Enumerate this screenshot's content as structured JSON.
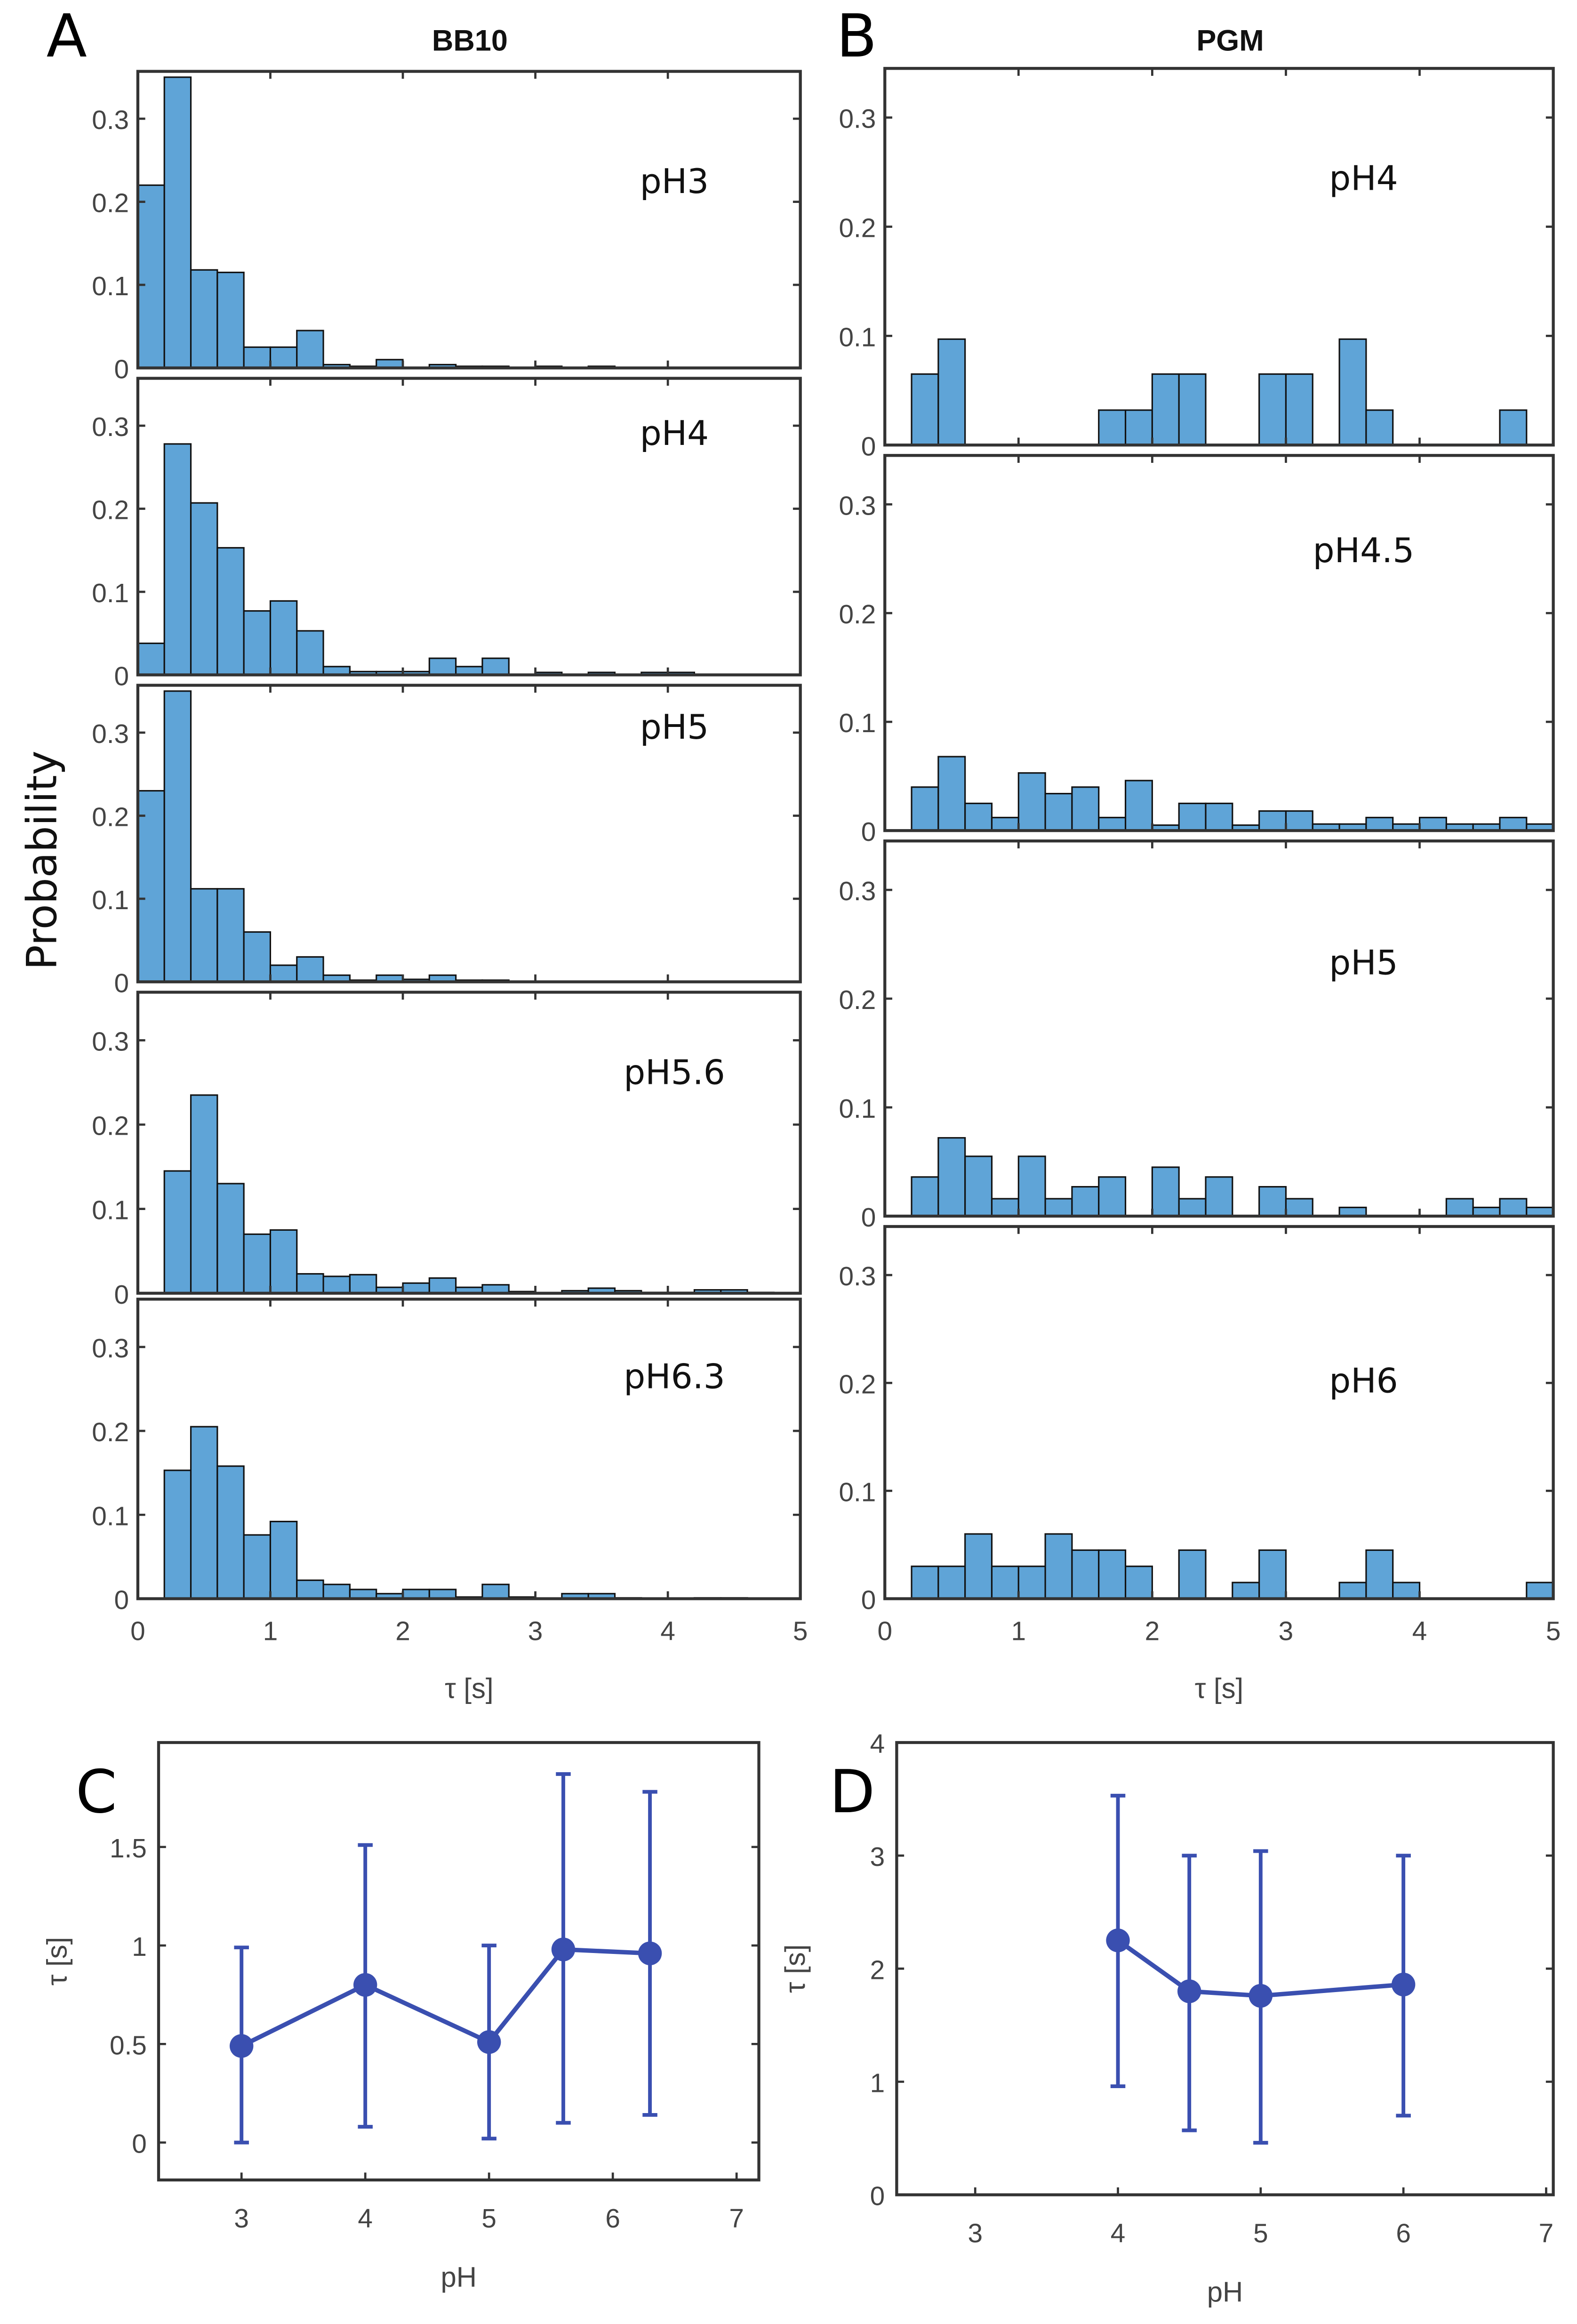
{
  "chart_data": [
    {
      "panel": "A",
      "type": "bar",
      "title": "BB10",
      "ylabel": "Probability",
      "xlabel": "τ [s]",
      "bin_edges_start": 0,
      "bin_width": 0.2,
      "xlim": [
        0,
        5
      ],
      "ylim": [
        0,
        0.357
      ],
      "xticks": [
        "0",
        "1",
        "2",
        "3",
        "4",
        "5"
      ],
      "yticks": [
        "0",
        "0.1",
        "0.2",
        "0.3"
      ],
      "series": [
        {
          "name": "pH3",
          "values": [
            0.22,
            0.35,
            0.118,
            0.115,
            0.025,
            0.025,
            0.045,
            0.004,
            0.002,
            0.01,
            0,
            0.004,
            0.002,
            0.002,
            0,
            0.002,
            0,
            0.002,
            0,
            0,
            0,
            0,
            0,
            0,
            0
          ]
        },
        {
          "name": "pH4",
          "values": [
            0.038,
            0.278,
            0.207,
            0.153,
            0.077,
            0.089,
            0.053,
            0.01,
            0.004,
            0.004,
            0.004,
            0.02,
            0.01,
            0.02,
            0,
            0.003,
            0,
            0.003,
            0,
            0.003,
            0.003,
            0,
            0,
            0,
            0
          ]
        },
        {
          "name": "pH5",
          "values": [
            0.23,
            0.35,
            0.112,
            0.112,
            0.06,
            0.02,
            0.03,
            0.008,
            0.002,
            0.008,
            0.003,
            0.008,
            0.002,
            0.002,
            0,
            0,
            0,
            0,
            0,
            0,
            0,
            0,
            0,
            0,
            0
          ]
        },
        {
          "name": "pH5.6",
          "values": [
            0,
            0.145,
            0.235,
            0.13,
            0.07,
            0.075,
            0.023,
            0.02,
            0.022,
            0.007,
            0.012,
            0.018,
            0.007,
            0.01,
            0.002,
            0,
            0.003,
            0.006,
            0.003,
            0.001,
            0.001,
            0.004,
            0.004,
            0.001,
            0
          ]
        },
        {
          "name": "pH6.3",
          "values": [
            0,
            0.153,
            0.205,
            0.158,
            0.076,
            0.092,
            0.022,
            0.017,
            0.011,
            0.006,
            0.011,
            0.011,
            0.002,
            0.017,
            0.002,
            0,
            0.006,
            0.006,
            0.001,
            0,
            0,
            0.001,
            0.001,
            0,
            0
          ]
        }
      ]
    },
    {
      "panel": "B",
      "type": "bar",
      "title": "PGM",
      "xlabel": "τ [s]",
      "bin_edges_start": 0,
      "bin_width": 0.2,
      "xlim": [
        0,
        5
      ],
      "ylim": [
        0,
        0.345
      ],
      "xticks": [
        "0",
        "1",
        "2",
        "3",
        "4",
        "5"
      ],
      "yticks": [
        "0",
        "0.1",
        "0.2",
        "0.3"
      ],
      "series": [
        {
          "name": "pH4",
          "values": [
            0,
            0.065,
            0.097,
            0,
            0,
            0,
            0,
            0,
            0.032,
            0.032,
            0.065,
            0.065,
            0,
            0,
            0.065,
            0.065,
            0,
            0.097,
            0.032,
            0,
            0,
            0,
            0,
            0.032,
            0
          ]
        },
        {
          "name": "pH4.5",
          "values": [
            0,
            0.04,
            0.068,
            0.025,
            0.012,
            0.053,
            0.034,
            0.04,
            0.012,
            0.046,
            0.005,
            0.025,
            0.025,
            0.005,
            0.018,
            0.018,
            0.006,
            0.006,
            0.012,
            0.006,
            0.012,
            0.006,
            0.006,
            0.012,
            0.006
          ]
        },
        {
          "name": "pH5",
          "values": [
            0,
            0.036,
            0.072,
            0.055,
            0.016,
            0.055,
            0.016,
            0.027,
            0.036,
            0,
            0.045,
            0.016,
            0.036,
            0,
            0.027,
            0.016,
            0,
            0.008,
            0,
            0,
            0,
            0.016,
            0.008,
            0.016,
            0.008
          ]
        },
        {
          "name": "pH6",
          "values": [
            0,
            0.03,
            0.03,
            0.06,
            0.03,
            0.03,
            0.06,
            0.045,
            0.045,
            0.03,
            0,
            0.045,
            0,
            0.015,
            0.045,
            0,
            0,
            0.015,
            0.045,
            0.015,
            0,
            0,
            0,
            0,
            0.015
          ]
        }
      ]
    },
    {
      "panel": "C",
      "type": "line",
      "xlabel": "pH",
      "ylabel": "τ [s]",
      "xlim": [
        2.33,
        7.18
      ],
      "ylim": [
        -0.19,
        2.03
      ],
      "xticks": [
        "3",
        "4",
        "5",
        "6",
        "7"
      ],
      "yticks": [
        "0",
        "0.5",
        "1",
        "1.5"
      ],
      "x": [
        3,
        4,
        5,
        5.6,
        6.3
      ],
      "y": [
        0.49,
        0.8,
        0.51,
        0.98,
        0.96
      ],
      "err_low": [
        0,
        0.08,
        0.02,
        0.1,
        0.14
      ],
      "err_high": [
        0.99,
        1.51,
        1.0,
        1.87,
        1.78
      ]
    },
    {
      "panel": "D",
      "type": "line",
      "xlabel": "pH",
      "ylabel": "τ [s]",
      "xlim": [
        2.45,
        7.05
      ],
      "ylim": [
        0,
        4
      ],
      "xticks": [
        "3",
        "4",
        "5",
        "6",
        "7"
      ],
      "yticks": [
        "0",
        "1",
        "2",
        "3",
        "4"
      ],
      "x": [
        4,
        4.5,
        5,
        6
      ],
      "y": [
        2.25,
        1.8,
        1.76,
        1.86
      ],
      "err_low": [
        0.96,
        0.57,
        0.46,
        0.7
      ],
      "err_high": [
        3.53,
        3.0,
        3.04,
        3.0
      ]
    }
  ],
  "colors": {
    "bar": "#5fa4d7",
    "line": "#3a4fb0"
  }
}
